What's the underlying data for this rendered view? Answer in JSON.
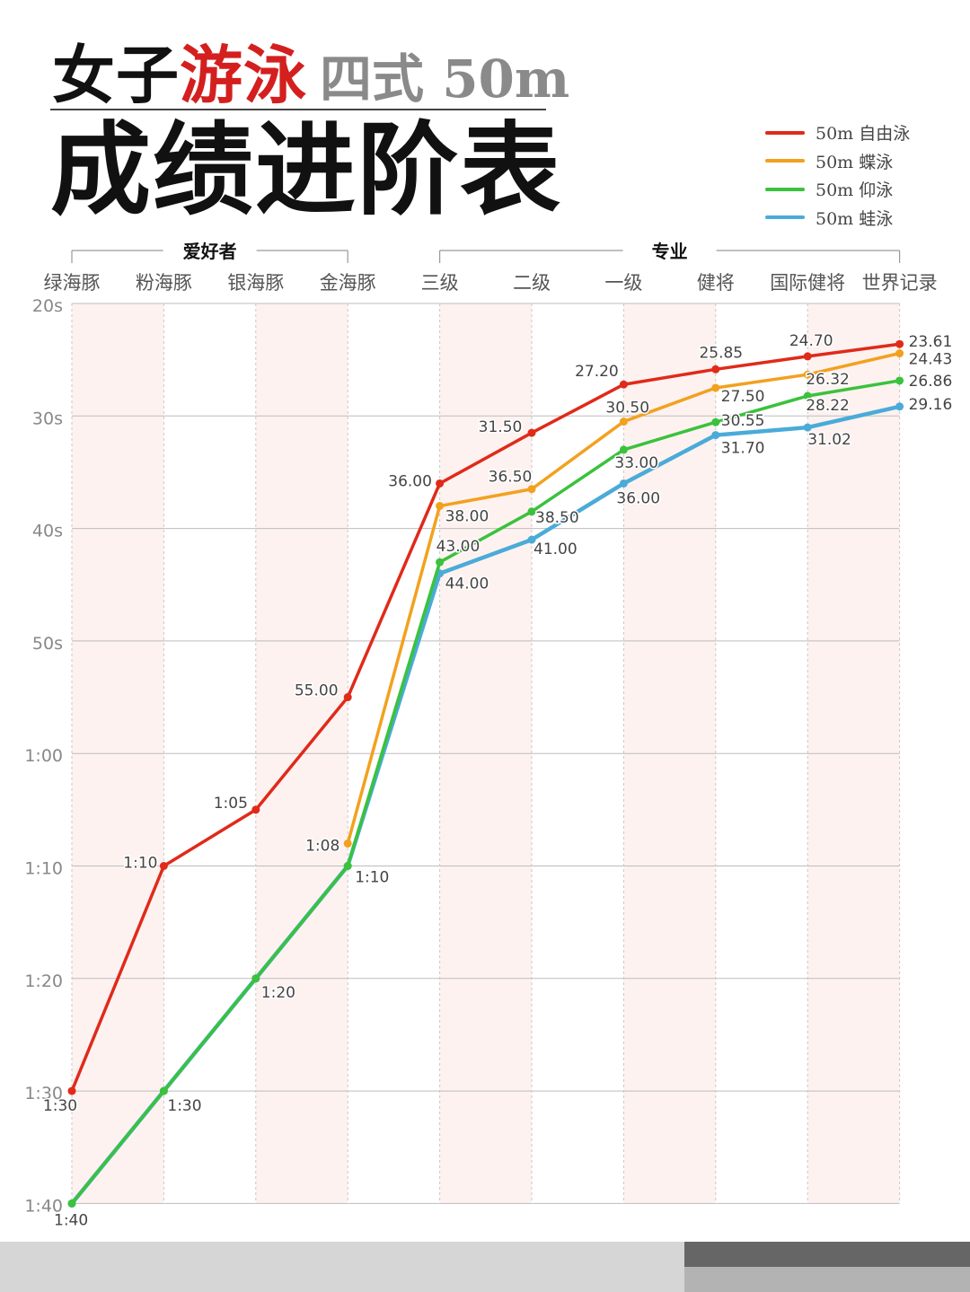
{
  "title": {
    "part1": "女子",
    "part2": "游泳",
    "part3": "四式 50m",
    "line2": "成绩进阶表"
  },
  "colors": {
    "freestyle": "#e02a1a",
    "butterfly": "#f2a11f",
    "backstroke": "#3ac23c",
    "breaststroke": "#4aabd8",
    "band": "#fdf2f0",
    "title_red": "#d41f1f"
  },
  "chart_data": {
    "type": "line",
    "groups": [
      {
        "label": "爱好者",
        "from": 0,
        "to": 3
      },
      {
        "label": "专业",
        "from": 4,
        "to": 9
      }
    ],
    "categories": [
      "绿海豚",
      "粉海豚",
      "银海豚",
      "金海豚",
      "三级",
      "二级",
      "一级",
      "健将",
      "国际健将",
      "世界记录"
    ],
    "y_axis": {
      "inverted": true,
      "ylim": [
        20,
        100
      ],
      "ticks": [
        {
          "v": 20,
          "label": "20s"
        },
        {
          "v": 30,
          "label": "30s"
        },
        {
          "v": 40,
          "label": "40s"
        },
        {
          "v": 50,
          "label": "50s"
        },
        {
          "v": 60,
          "label": "1:00"
        },
        {
          "v": 70,
          "label": "1:10"
        },
        {
          "v": 80,
          "label": "1:20"
        },
        {
          "v": 90,
          "label": "1:30"
        },
        {
          "v": 100,
          "label": "1:40"
        }
      ]
    },
    "series": [
      {
        "key": "freestyle",
        "name": "50m 自由泳",
        "color": "#e02a1a",
        "values": [
          90,
          70,
          65,
          55,
          36,
          31.5,
          27.2,
          25.85,
          24.7,
          23.61
        ],
        "labels": [
          "1:30",
          "1:10",
          "1:05",
          "55.00",
          "36.00",
          "31.50",
          "27.20",
          "25.85",
          "24.70",
          "23.61"
        ]
      },
      {
        "key": "butterfly",
        "name": "50m 蝶泳",
        "color": "#f2a11f",
        "values": [
          null,
          null,
          null,
          68,
          38,
          36.5,
          30.5,
          27.5,
          26.32,
          24.43
        ],
        "labels": [
          null,
          null,
          null,
          "1:08",
          "38.00",
          "36.50",
          "30.50",
          "27.50",
          "26.32",
          "24.43"
        ]
      },
      {
        "key": "backstroke",
        "name": "50m 仰泳",
        "color": "#3ac23c",
        "values": [
          100,
          90,
          80,
          70,
          43,
          38.5,
          33,
          30.55,
          28.22,
          26.86
        ],
        "labels": [
          null,
          null,
          null,
          null,
          "43.00",
          "38.50",
          "33.00",
          "30.55",
          "28.22",
          "26.86"
        ]
      },
      {
        "key": "breaststroke",
        "name": "50m 蛙泳",
        "color": "#4aabd8",
        "values": [
          100,
          90,
          80,
          70,
          44,
          41,
          36,
          31.7,
          31.02,
          29.16
        ],
        "labels": [
          "1:40",
          "1:30",
          "1:20",
          "1:10",
          "44.00",
          "41.00",
          "36.00",
          "31.70",
          "31.02",
          "29.16"
        ]
      }
    ],
    "grid": true,
    "legend_position": "top-right"
  }
}
